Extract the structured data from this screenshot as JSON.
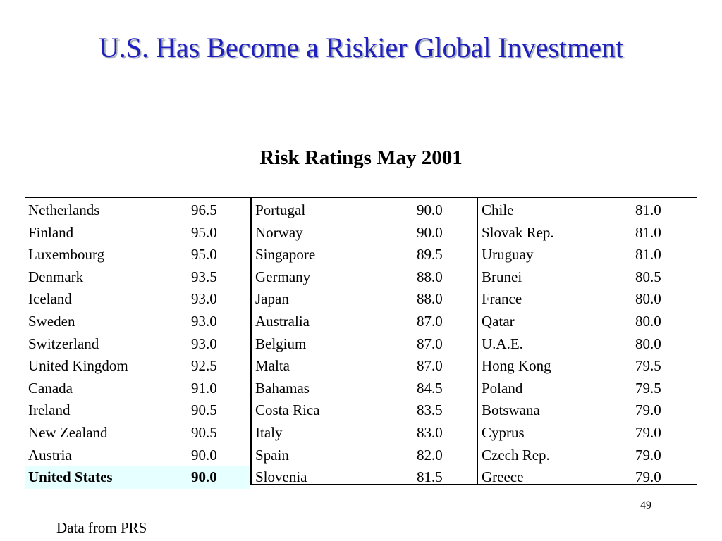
{
  "slide": {
    "title": "U.S. Has Become a Riskier Global Investment",
    "title_color": "#1f1fbf",
    "table_heading": "Risk Ratings May 2001",
    "page_number": "49",
    "source_note": "Data from PRS",
    "highlight_color": "#e6ffff"
  },
  "table": {
    "columns": [
      [
        {
          "country": "Netherlands",
          "rating": "96.5"
        },
        {
          "country": "Finland",
          "rating": "95.0"
        },
        {
          "country": "Luxembourg",
          "rating": "95.0"
        },
        {
          "country": "Denmark",
          "rating": "93.5"
        },
        {
          "country": "Iceland",
          "rating": "93.0"
        },
        {
          "country": "Sweden",
          "rating": "93.0"
        },
        {
          "country": "Switzerland",
          "rating": "93.0"
        },
        {
          "country": "United Kingdom",
          "rating": "92.5"
        },
        {
          "country": "Canada",
          "rating": "91.0"
        },
        {
          "country": "Ireland",
          "rating": "90.5"
        },
        {
          "country": "New Zealand",
          "rating": "90.5"
        },
        {
          "country": "Austria",
          "rating": "90.0"
        },
        {
          "country": "United States",
          "rating": "90.0",
          "highlight": true
        }
      ],
      [
        {
          "country": "Portugal",
          "rating": "90.0"
        },
        {
          "country": "Norway",
          "rating": "90.0"
        },
        {
          "country": "Singapore",
          "rating": "89.5"
        },
        {
          "country": "Germany",
          "rating": "88.0"
        },
        {
          "country": "Japan",
          "rating": "88.0"
        },
        {
          "country": "Australia",
          "rating": "87.0"
        },
        {
          "country": "Belgium",
          "rating": "87.0"
        },
        {
          "country": "Malta",
          "rating": "87.0"
        },
        {
          "country": "Bahamas",
          "rating": "84.5"
        },
        {
          "country": "Costa Rica",
          "rating": "83.5"
        },
        {
          "country": "Italy",
          "rating": "83.0"
        },
        {
          "country": "Spain",
          "rating": "82.0"
        },
        {
          "country": "Slovenia",
          "rating": "81.5"
        }
      ],
      [
        {
          "country": "Chile",
          "rating": "81.0"
        },
        {
          "country": "Slovak Rep.",
          "rating": "81.0"
        },
        {
          "country": "Uruguay",
          "rating": "81.0"
        },
        {
          "country": "Brunei",
          "rating": "80.5"
        },
        {
          "country": "France",
          "rating": "80.0"
        },
        {
          "country": "Qatar",
          "rating": "80.0"
        },
        {
          "country": "U.A.E.",
          "rating": "80.0"
        },
        {
          "country": "Hong Kong",
          "rating": "79.5"
        },
        {
          "country": "Poland",
          "rating": "79.5"
        },
        {
          "country": "Botswana",
          "rating": "79.0"
        },
        {
          "country": "Cyprus",
          "rating": "79.0"
        },
        {
          "country": "Czech Rep.",
          "rating": "79.0"
        },
        {
          "country": "Greece",
          "rating": "79.0"
        }
      ]
    ]
  }
}
